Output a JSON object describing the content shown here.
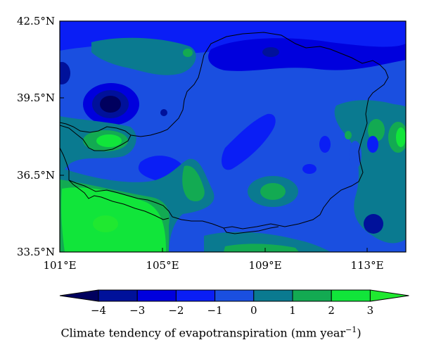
{
  "map": {
    "lat_labels": [
      "42.5°N",
      "39.5°N",
      "36.5°N",
      "33.5°N"
    ],
    "lon_labels": [
      "101°E",
      "105°E",
      "109°E",
      "113°E"
    ],
    "lat_range": [
      33.5,
      42.5
    ],
    "lon_range": [
      101,
      114.5
    ]
  },
  "colorbar": {
    "title": "Climate tendency of evapotranspiration (mm year",
    "title_exponent": "−1",
    "title_close": ")",
    "ticks": [
      "−4",
      "−3",
      "−2",
      "−1",
      "0",
      "1",
      "2",
      "3"
    ],
    "colors": [
      "#00005e",
      "#00119a",
      "#0000dd",
      "#0a1ef5",
      "#1a4fe0",
      "#0a7a90",
      "#13aa52",
      "#11e53a",
      "#20e830"
    ],
    "extend": "both"
  },
  "chart_data": {
    "type": "heatmap",
    "xlabel": "",
    "ylabel": "",
    "xlim": [
      101,
      114.5
    ],
    "ylim": [
      33.5,
      42.5
    ],
    "xticks": [
      101,
      105,
      109,
      113
    ],
    "yticks": [
      33.5,
      36.5,
      39.5,
      42.5
    ],
    "levels": [
      -4,
      -3,
      -2,
      -1,
      0,
      1,
      2,
      3
    ],
    "colorbar_label": "Climate tendency of evapotranspiration (mm year−1)"
  }
}
